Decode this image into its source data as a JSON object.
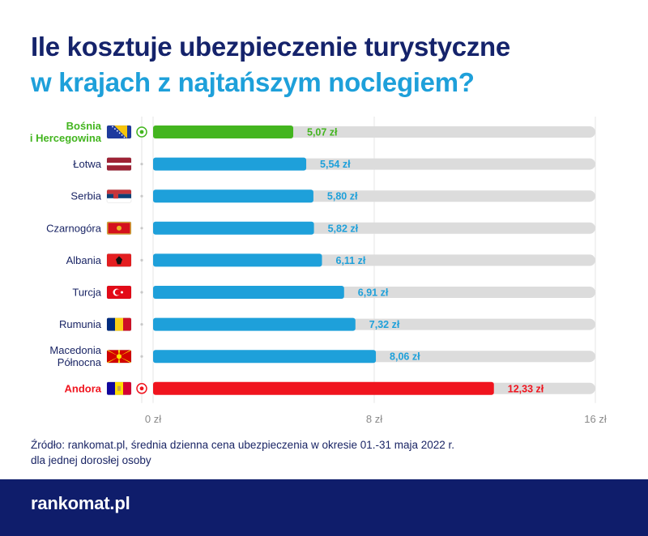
{
  "title": {
    "line1": "Ile kosztuje ubezpieczenie turystyczne",
    "line2": "w krajach z najtańszym noclegiem?"
  },
  "colors": {
    "navy": "#15236b",
    "accent_blue": "#1ea0da",
    "green": "#43b51f",
    "red": "#f0141e",
    "track": "#dcdcdc",
    "footer": "#0f1d6b"
  },
  "chart_data": {
    "type": "bar",
    "orientation": "horizontal",
    "unit": "zł",
    "categories": [
      "Bośnia i Hercegowina",
      "Łotwa",
      "Serbia",
      "Czarnogóra",
      "Albania",
      "Turcja",
      "Rumunia",
      "Macedonia Północna",
      "Andora"
    ],
    "category_lines": [
      [
        "Bośnia",
        "i Hercegowina"
      ],
      [
        "Łotwa"
      ],
      [
        "Serbia"
      ],
      [
        "Czarnogóra"
      ],
      [
        "Albania"
      ],
      [
        "Turcja"
      ],
      [
        "Rumunia"
      ],
      [
        "Macedonia",
        "Północna"
      ],
      [
        "Andora"
      ]
    ],
    "values": [
      5.07,
      5.54,
      5.8,
      5.82,
      6.11,
      6.91,
      7.32,
      8.06,
      12.33
    ],
    "value_labels": [
      "5,07 zł",
      "5,54 zł",
      "5,80 zł",
      "5,82 zł",
      "6,11 zł",
      "6,91 zł",
      "7,32 zł",
      "8,06 zł",
      "12,33 zł"
    ],
    "highlight": [
      "min",
      "",
      "",
      "",
      "",
      "",
      "",
      "",
      "max"
    ],
    "flags": [
      "flag-bosnia-icon",
      "flag-latvia-icon",
      "flag-serbia-icon",
      "flag-montenegro-icon",
      "flag-albania-icon",
      "flag-turkey-icon",
      "flag-romania-icon",
      "flag-north-macedonia-icon",
      "flag-andorra-icon"
    ],
    "xlim": [
      0,
      16
    ],
    "xticks": [
      0,
      8,
      16
    ],
    "xtick_labels": [
      "0 zł",
      "8 zł",
      "16 zł"
    ],
    "grid": true
  },
  "source": {
    "line1": "Źródło: rankomat.pl, średnia dzienna cena ubezpieczenia w okresie 01.-31 maja 2022 r.",
    "line2": "dla jednej dorosłej osoby"
  },
  "footer": {
    "logo": "rankomat.pl"
  }
}
